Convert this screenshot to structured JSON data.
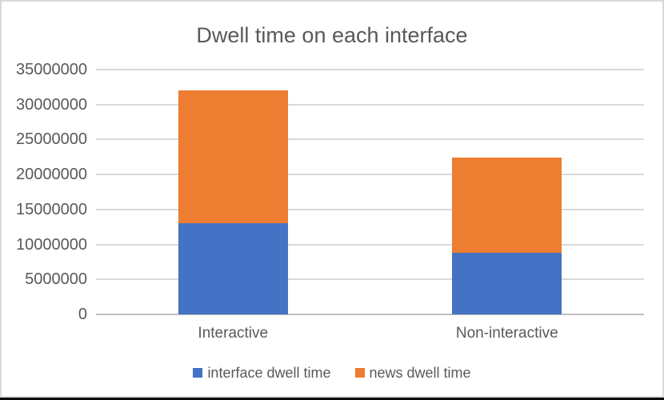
{
  "window": {
    "background": "#FFFFFF"
  },
  "chart_data": {
    "type": "bar",
    "stacked": true,
    "title": "Dwell time on each interface",
    "categories": [
      "Interactive",
      "Non-interactive"
    ],
    "series": [
      {
        "name": "interface dwell time",
        "color": "#4472C4",
        "values": [
          13000000,
          8800000
        ]
      },
      {
        "name": "news dwell time",
        "color": "#ED7D31",
        "values": [
          19000000,
          13600000
        ]
      }
    ],
    "totals": [
      32000000,
      22400000
    ],
    "xlabel": "",
    "ylabel": "",
    "ylim": [
      0,
      35000000
    ],
    "ytick_step": 5000000,
    "ytick_labels": [
      "0",
      "5000000",
      "10000000",
      "15000000",
      "20000000",
      "25000000",
      "30000000",
      "35000000"
    ],
    "grid": true,
    "legend_position": "bottom",
    "legend_entries": [
      "interface dwell time",
      "news dwell time"
    ]
  },
  "colors": {
    "text": "#595959",
    "gridline": "#D9D9D9",
    "axis_line": "#BFBFBF",
    "chart_border": "#D9D9D9",
    "chart_background": "#FFFFFF",
    "bottom_edge": "#0A0A0A"
  }
}
